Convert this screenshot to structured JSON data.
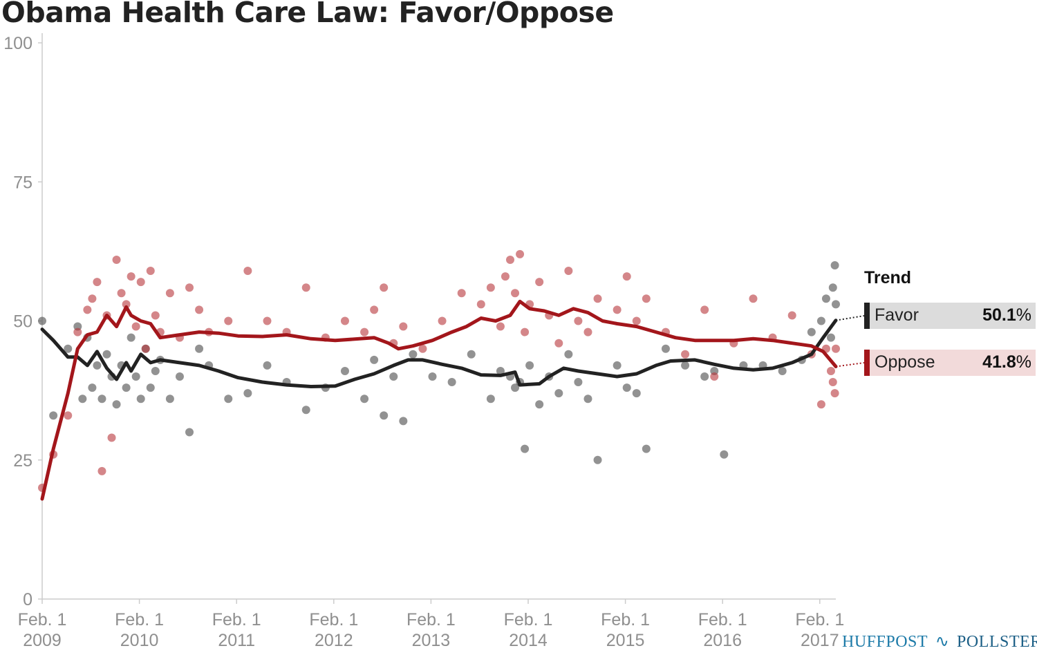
{
  "title": "Obama Health Care Law: Favor/Oppose",
  "colors": {
    "favor": "#222222",
    "oppose": "#a3161b",
    "favor_dot": "#4a4a4a",
    "oppose_dot": "#b7353a",
    "favor_band": "#dcdcdc",
    "oppose_band": "#f2dada",
    "axis": "#cccccc"
  },
  "legend": {
    "title": "Trend",
    "items": [
      {
        "name": "Favor",
        "value": "50.1",
        "unit": "%"
      },
      {
        "name": "Oppose",
        "value": "41.8",
        "unit": "%"
      }
    ]
  },
  "branding": {
    "left": "HUFFPOST",
    "right": "POLLSTER",
    "icon": "pollster-swoosh-icon"
  },
  "chart_data": {
    "type": "line",
    "title": "Obama Health Care Law: Favor/Oppose",
    "x_ticks": [
      {
        "line1": "Feb. 1",
        "line2": "2009",
        "x": 2009.085
      },
      {
        "line1": "Feb. 1",
        "line2": "2010",
        "x": 2010.085
      },
      {
        "line1": "Feb. 1",
        "line2": "2011",
        "x": 2011.085
      },
      {
        "line1": "Feb. 1",
        "line2": "2012",
        "x": 2012.085
      },
      {
        "line1": "Feb. 1",
        "line2": "2013",
        "x": 2013.085
      },
      {
        "line1": "Feb. 1",
        "line2": "2014",
        "x": 2014.085
      },
      {
        "line1": "Feb. 1",
        "line2": "2015",
        "x": 2015.085
      },
      {
        "line1": "Feb. 1",
        "line2": "2016",
        "x": 2016.085
      },
      {
        "line1": "Feb. 1",
        "line2": "2017",
        "x": 2017.085
      }
    ],
    "xlim": [
      2009.085,
      2017.25
    ],
    "ylim": [
      0,
      100
    ],
    "y_ticks": [
      "0",
      "25",
      "50",
      "75",
      "100"
    ],
    "grid": false,
    "legend_position": "right",
    "series": [
      {
        "name": "Favor",
        "trend": [
          [
            2009.085,
            48.5
          ],
          [
            2009.2,
            46.5
          ],
          [
            2009.35,
            43.5
          ],
          [
            2009.45,
            43.5
          ],
          [
            2009.55,
            42
          ],
          [
            2009.65,
            44.5
          ],
          [
            2009.75,
            41.5
          ],
          [
            2009.85,
            39.5
          ],
          [
            2009.95,
            42.5
          ],
          [
            2010.0,
            41
          ],
          [
            2010.1,
            44
          ],
          [
            2010.2,
            42.5
          ],
          [
            2010.3,
            43
          ],
          [
            2010.5,
            42.5
          ],
          [
            2010.7,
            42
          ],
          [
            2010.9,
            41
          ],
          [
            2011.1,
            39.8
          ],
          [
            2011.35,
            39
          ],
          [
            2011.6,
            38.5
          ],
          [
            2011.85,
            38.2
          ],
          [
            2012.1,
            38.3
          ],
          [
            2012.3,
            39.5
          ],
          [
            2012.5,
            40.5
          ],
          [
            2012.7,
            42
          ],
          [
            2012.85,
            43
          ],
          [
            2013.0,
            43
          ],
          [
            2013.2,
            42.2
          ],
          [
            2013.4,
            41.5
          ],
          [
            2013.6,
            40.3
          ],
          [
            2013.8,
            40.2
          ],
          [
            2013.95,
            40.8
          ],
          [
            2014.0,
            38.5
          ],
          [
            2014.2,
            38.7
          ],
          [
            2014.3,
            40
          ],
          [
            2014.45,
            41.5
          ],
          [
            2014.6,
            41
          ],
          [
            2014.8,
            40.5
          ],
          [
            2015.0,
            40
          ],
          [
            2015.2,
            40.5
          ],
          [
            2015.4,
            42
          ],
          [
            2015.55,
            42.8
          ],
          [
            2015.8,
            43
          ],
          [
            2016.0,
            42.2
          ],
          [
            2016.2,
            41.5
          ],
          [
            2016.4,
            41.2
          ],
          [
            2016.6,
            41.5
          ],
          [
            2016.8,
            42.5
          ],
          [
            2017.0,
            44
          ],
          [
            2017.12,
            47
          ],
          [
            2017.25,
            50.1
          ]
        ],
        "polls": [
          [
            2009.085,
            50
          ],
          [
            2009.2,
            33
          ],
          [
            2009.35,
            45
          ],
          [
            2009.45,
            49
          ],
          [
            2009.5,
            36
          ],
          [
            2009.55,
            47
          ],
          [
            2009.6,
            38
          ],
          [
            2009.65,
            42
          ],
          [
            2009.7,
            36
          ],
          [
            2009.75,
            44
          ],
          [
            2009.8,
            40
          ],
          [
            2009.85,
            35
          ],
          [
            2009.9,
            42
          ],
          [
            2009.95,
            38
          ],
          [
            2010.0,
            47
          ],
          [
            2010.05,
            40
          ],
          [
            2010.1,
            36
          ],
          [
            2010.15,
            45
          ],
          [
            2010.2,
            38
          ],
          [
            2010.25,
            41
          ],
          [
            2010.3,
            43
          ],
          [
            2010.4,
            36
          ],
          [
            2010.5,
            40
          ],
          [
            2010.6,
            30
          ],
          [
            2010.7,
            45
          ],
          [
            2010.8,
            42
          ],
          [
            2011.0,
            36
          ],
          [
            2011.2,
            37
          ],
          [
            2011.4,
            42
          ],
          [
            2011.6,
            39
          ],
          [
            2011.8,
            34
          ],
          [
            2012.0,
            38
          ],
          [
            2012.2,
            41
          ],
          [
            2012.4,
            36
          ],
          [
            2012.5,
            43
          ],
          [
            2012.6,
            33
          ],
          [
            2012.7,
            40
          ],
          [
            2012.8,
            32
          ],
          [
            2012.9,
            44
          ],
          [
            2013.1,
            40
          ],
          [
            2013.3,
            39
          ],
          [
            2013.5,
            44
          ],
          [
            2013.7,
            36
          ],
          [
            2013.8,
            41
          ],
          [
            2013.9,
            40
          ],
          [
            2013.95,
            38
          ],
          [
            2014.0,
            39
          ],
          [
            2014.05,
            27
          ],
          [
            2014.1,
            42
          ],
          [
            2014.2,
            35
          ],
          [
            2014.3,
            40
          ],
          [
            2014.4,
            37
          ],
          [
            2014.5,
            44
          ],
          [
            2014.6,
            39
          ],
          [
            2014.7,
            36
          ],
          [
            2014.8,
            25
          ],
          [
            2015.0,
            42
          ],
          [
            2015.1,
            38
          ],
          [
            2015.2,
            37
          ],
          [
            2015.3,
            27
          ],
          [
            2015.5,
            45
          ],
          [
            2015.7,
            42
          ],
          [
            2015.9,
            40
          ],
          [
            2016.0,
            41
          ],
          [
            2016.1,
            26
          ],
          [
            2016.3,
            42
          ],
          [
            2016.5,
            42
          ],
          [
            2016.7,
            41
          ],
          [
            2016.9,
            43
          ],
          [
            2017.0,
            48
          ],
          [
            2017.1,
            50
          ],
          [
            2017.15,
            54
          ],
          [
            2017.2,
            47
          ],
          [
            2017.22,
            56
          ],
          [
            2017.24,
            60
          ],
          [
            2017.25,
            53
          ]
        ]
      },
      {
        "name": "Oppose",
        "trend": [
          [
            2009.085,
            18
          ],
          [
            2009.2,
            27
          ],
          [
            2009.35,
            37
          ],
          [
            2009.45,
            45
          ],
          [
            2009.55,
            47.5
          ],
          [
            2009.65,
            48
          ],
          [
            2009.75,
            51
          ],
          [
            2009.85,
            49
          ],
          [
            2009.95,
            52.5
          ],
          [
            2010.0,
            51
          ],
          [
            2010.1,
            50
          ],
          [
            2010.2,
            49.5
          ],
          [
            2010.3,
            47
          ],
          [
            2010.5,
            47.5
          ],
          [
            2010.7,
            48
          ],
          [
            2010.9,
            47.8
          ],
          [
            2011.1,
            47.3
          ],
          [
            2011.35,
            47.2
          ],
          [
            2011.6,
            47.5
          ],
          [
            2011.85,
            46.8
          ],
          [
            2012.1,
            46.5
          ],
          [
            2012.35,
            46.8
          ],
          [
            2012.5,
            47
          ],
          [
            2012.65,
            46
          ],
          [
            2012.75,
            45
          ],
          [
            2012.9,
            45.5
          ],
          [
            2013.1,
            46.5
          ],
          [
            2013.3,
            48
          ],
          [
            2013.45,
            49
          ],
          [
            2013.6,
            50.5
          ],
          [
            2013.75,
            50
          ],
          [
            2013.9,
            51
          ],
          [
            2014.0,
            53.5
          ],
          [
            2014.1,
            52.2
          ],
          [
            2014.25,
            51.8
          ],
          [
            2014.4,
            51
          ],
          [
            2014.55,
            52.2
          ],
          [
            2014.7,
            51.5
          ],
          [
            2014.85,
            50
          ],
          [
            2015.0,
            49.5
          ],
          [
            2015.2,
            49
          ],
          [
            2015.4,
            48
          ],
          [
            2015.6,
            47
          ],
          [
            2015.8,
            46.5
          ],
          [
            2016.0,
            46.5
          ],
          [
            2016.2,
            46.5
          ],
          [
            2016.4,
            46.8
          ],
          [
            2016.6,
            46.5
          ],
          [
            2016.8,
            46
          ],
          [
            2017.0,
            45.5
          ],
          [
            2017.12,
            44.5
          ],
          [
            2017.25,
            41.8
          ]
        ],
        "polls": [
          [
            2009.085,
            20
          ],
          [
            2009.2,
            26
          ],
          [
            2009.35,
            33
          ],
          [
            2009.45,
            48
          ],
          [
            2009.55,
            52
          ],
          [
            2009.6,
            54
          ],
          [
            2009.65,
            57
          ],
          [
            2009.7,
            23
          ],
          [
            2009.75,
            51
          ],
          [
            2009.8,
            29
          ],
          [
            2009.85,
            61
          ],
          [
            2009.9,
            55
          ],
          [
            2009.95,
            53
          ],
          [
            2010.0,
            58
          ],
          [
            2010.05,
            49
          ],
          [
            2010.1,
            57
          ],
          [
            2010.15,
            45
          ],
          [
            2010.2,
            59
          ],
          [
            2010.25,
            51
          ],
          [
            2010.3,
            48
          ],
          [
            2010.4,
            55
          ],
          [
            2010.5,
            47
          ],
          [
            2010.6,
            56
          ],
          [
            2010.7,
            52
          ],
          [
            2010.8,
            48
          ],
          [
            2011.0,
            50
          ],
          [
            2011.2,
            59
          ],
          [
            2011.4,
            50
          ],
          [
            2011.6,
            48
          ],
          [
            2011.8,
            56
          ],
          [
            2012.0,
            47
          ],
          [
            2012.2,
            50
          ],
          [
            2012.4,
            48
          ],
          [
            2012.5,
            52
          ],
          [
            2012.6,
            56
          ],
          [
            2012.7,
            46
          ],
          [
            2012.8,
            49
          ],
          [
            2013.0,
            45
          ],
          [
            2013.2,
            50
          ],
          [
            2013.4,
            55
          ],
          [
            2013.6,
            53
          ],
          [
            2013.7,
            56
          ],
          [
            2013.8,
            49
          ],
          [
            2013.85,
            58
          ],
          [
            2013.9,
            61
          ],
          [
            2013.95,
            55
          ],
          [
            2014.0,
            62
          ],
          [
            2014.05,
            48
          ],
          [
            2014.1,
            53
          ],
          [
            2014.2,
            57
          ],
          [
            2014.3,
            51
          ],
          [
            2014.4,
            46
          ],
          [
            2014.5,
            59
          ],
          [
            2014.6,
            50
          ],
          [
            2014.7,
            48
          ],
          [
            2014.8,
            54
          ],
          [
            2015.0,
            52
          ],
          [
            2015.1,
            58
          ],
          [
            2015.2,
            50
          ],
          [
            2015.3,
            54
          ],
          [
            2015.5,
            48
          ],
          [
            2015.7,
            44
          ],
          [
            2015.9,
            52
          ],
          [
            2016.0,
            40
          ],
          [
            2016.2,
            46
          ],
          [
            2016.4,
            54
          ],
          [
            2016.6,
            47
          ],
          [
            2016.8,
            51
          ],
          [
            2017.0,
            44
          ],
          [
            2017.1,
            35
          ],
          [
            2017.15,
            45
          ],
          [
            2017.2,
            41
          ],
          [
            2017.22,
            39
          ],
          [
            2017.24,
            37
          ],
          [
            2017.25,
            45
          ]
        ]
      }
    ]
  }
}
